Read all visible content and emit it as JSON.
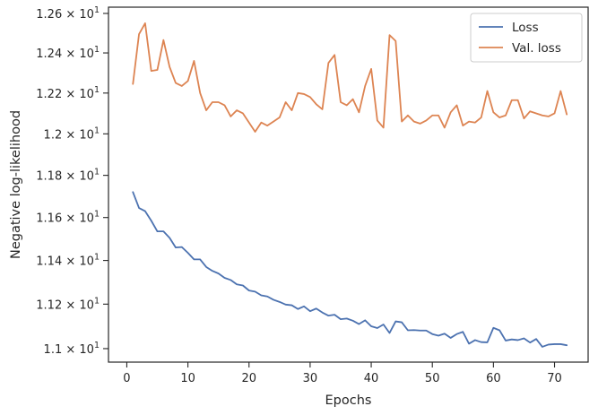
{
  "chart_data": {
    "type": "line",
    "title": "",
    "xlabel": "Epochs",
    "ylabel": "Negative log-likelihood",
    "xlim": [
      -3,
      75.5
    ],
    "ylim": [
      10.94,
      12.632
    ],
    "yscale": "log",
    "grid": false,
    "legend_position": "top-right",
    "x_ticks": [
      {
        "value": 0,
        "label": "0"
      },
      {
        "value": 10,
        "label": "10"
      },
      {
        "value": 20,
        "label": "20"
      },
      {
        "value": 30,
        "label": "30"
      },
      {
        "value": 40,
        "label": "40"
      },
      {
        "value": 50,
        "label": "50"
      },
      {
        "value": 60,
        "label": "60"
      },
      {
        "value": 70,
        "label": "70"
      }
    ],
    "y_ticks": [
      {
        "value": 11.0,
        "mantissa": "1.1",
        "base": "10",
        "exponent": "1"
      },
      {
        "value": 11.2,
        "mantissa": "1.12",
        "base": "10",
        "exponent": "1"
      },
      {
        "value": 11.4,
        "mantissa": "1.14",
        "base": "10",
        "exponent": "1"
      },
      {
        "value": 11.6,
        "mantissa": "1.16",
        "base": "10",
        "exponent": "1"
      },
      {
        "value": 11.8,
        "mantissa": "1.18",
        "base": "10",
        "exponent": "1"
      },
      {
        "value": 12.0,
        "mantissa": "1.2",
        "base": "10",
        "exponent": "1"
      },
      {
        "value": 12.2,
        "mantissa": "1.22",
        "base": "10",
        "exponent": "1"
      },
      {
        "value": 12.4,
        "mantissa": "1.24",
        "base": "10",
        "exponent": "1"
      },
      {
        "value": 12.6,
        "mantissa": "1.26",
        "base": "10",
        "exponent": "1"
      }
    ],
    "series": [
      {
        "name": "Loss",
        "color": "#4c72b0",
        "x": [
          1,
          2,
          3,
          4,
          5,
          6,
          7,
          8,
          9,
          10,
          11,
          12,
          13,
          14,
          15,
          16,
          17,
          18,
          19,
          20,
          21,
          22,
          23,
          24,
          25,
          26,
          27,
          28,
          29,
          30,
          31,
          32,
          33,
          34,
          35,
          36,
          37,
          38,
          39,
          40,
          41,
          42,
          43,
          44,
          45,
          46,
          47,
          48,
          49,
          50,
          51,
          52,
          53,
          54,
          55,
          56,
          57,
          58,
          59,
          60,
          61,
          62,
          63,
          64,
          65,
          66,
          67,
          68,
          69,
          70,
          71,
          72
        ],
        "values": [
          11.72,
          11.645,
          11.63,
          11.585,
          11.535,
          11.535,
          11.505,
          11.46,
          11.462,
          11.435,
          11.405,
          11.405,
          11.37,
          11.352,
          11.34,
          11.32,
          11.31,
          11.29,
          11.285,
          11.262,
          11.257,
          11.24,
          11.235,
          11.22,
          11.21,
          11.198,
          11.195,
          11.178,
          11.19,
          11.168,
          11.18,
          11.162,
          11.148,
          11.152,
          11.132,
          11.135,
          11.125,
          11.11,
          11.127,
          11.1,
          11.092,
          11.108,
          11.07,
          11.122,
          11.118,
          11.082,
          11.083,
          11.081,
          11.081,
          11.065,
          11.058,
          11.067,
          11.048,
          11.065,
          11.075,
          11.022,
          11.038,
          11.029,
          11.028,
          11.093,
          11.082,
          11.036,
          11.041,
          11.038,
          11.046,
          11.027,
          11.043,
          11.008,
          11.018,
          11.02,
          11.02,
          11.015
        ]
      },
      {
        "name": "Val. loss",
        "color": "#dd8452",
        "x": [
          1,
          2,
          3,
          4,
          5,
          6,
          7,
          8,
          9,
          10,
          11,
          12,
          13,
          14,
          15,
          16,
          17,
          18,
          19,
          20,
          21,
          22,
          23,
          24,
          25,
          26,
          27,
          28,
          29,
          30,
          31,
          32,
          33,
          34,
          35,
          36,
          37,
          38,
          39,
          40,
          41,
          42,
          43,
          44,
          45,
          46,
          47,
          48,
          49,
          50,
          51,
          52,
          53,
          54,
          55,
          56,
          57,
          58,
          59,
          60,
          61,
          62,
          63,
          64,
          65,
          66,
          67,
          68,
          69,
          70,
          71,
          72
        ],
        "values": [
          12.245,
          12.495,
          12.55,
          12.31,
          12.315,
          12.465,
          12.33,
          12.25,
          12.235,
          12.26,
          12.36,
          12.2,
          12.115,
          12.155,
          12.155,
          12.14,
          12.085,
          12.115,
          12.1,
          12.055,
          12.01,
          12.055,
          12.04,
          12.06,
          12.08,
          12.155,
          12.115,
          12.2,
          12.195,
          12.18,
          12.145,
          12.12,
          12.35,
          12.39,
          12.155,
          12.14,
          12.17,
          12.105,
          12.235,
          12.32,
          12.065,
          12.03,
          12.49,
          12.46,
          12.06,
          12.09,
          12.06,
          12.05,
          12.065,
          12.09,
          12.09,
          12.03,
          12.105,
          12.14,
          12.04,
          12.06,
          12.055,
          12.08,
          12.21,
          12.105,
          12.08,
          12.09,
          12.165,
          12.165,
          12.075,
          12.11,
          12.1,
          12.09,
          12.085,
          12.1,
          12.21,
          12.095
        ]
      }
    ]
  }
}
